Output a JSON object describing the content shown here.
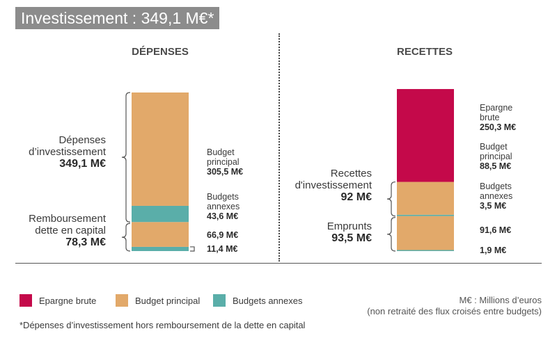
{
  "title": "Investissement : 349,1 M€*",
  "colors": {
    "epargne": "#c4094a",
    "principal": "#e2a96a",
    "annexes": "#5aaea9",
    "bracket": "#555555"
  },
  "chart_data": [
    {
      "type": "bar",
      "title": "DÉPENSES",
      "unit": "M€",
      "stack": [
        {
          "name": "Budget principal",
          "label_line1": "Budget",
          "label_line2": "principal",
          "value": 305.5,
          "value_label": "305,5 M€",
          "color_key": "principal"
        },
        {
          "name": "Budgets annexes",
          "label_line1": "Budgets",
          "label_line2": "annexes",
          "value": 43.6,
          "value_label": "43,6 M€",
          "color_key": "annexes"
        },
        {
          "name": "Budget principal",
          "value": 66.9,
          "value_label": "66,9 M€",
          "color_key": "principal"
        },
        {
          "name": "Budgets annexes",
          "value": 11.4,
          "value_label": "11,4 M€",
          "color_key": "annexes"
        }
      ],
      "groups": [
        {
          "line1": "Dépenses",
          "line2": "d’investissement",
          "value_label": "349,1 M€",
          "value": 349.1
        },
        {
          "line1": "Remboursement",
          "line2": "dette en capital",
          "value_label": "78,3 M€",
          "value": 78.3
        }
      ]
    },
    {
      "type": "bar",
      "title": "RECETTES",
      "unit": "M€",
      "stack": [
        {
          "name": "Epargne brute",
          "label_line1": "Epargne",
          "label_line2": "brute",
          "value": 250.3,
          "value_label": "250,3 M€",
          "color_key": "epargne"
        },
        {
          "name": "Budget principal",
          "label_line1": "Budget",
          "label_line2": "principal",
          "value": 88.5,
          "value_label": "88,5 M€",
          "color_key": "principal"
        },
        {
          "name": "Budgets annexes",
          "label_line1": "Budgets",
          "label_line2": "annexes",
          "value": 3.5,
          "value_label": "3,5 M€",
          "color_key": "annexes"
        },
        {
          "name": "Budget principal",
          "value": 91.6,
          "value_label": "91,6 M€",
          "color_key": "principal"
        },
        {
          "name": "Budgets annexes",
          "value": 1.9,
          "value_label": "1,9 M€",
          "color_key": "annexes"
        }
      ],
      "groups": [
        {
          "line1": "Recettes",
          "line2": "d'investissement",
          "value_label": "92 M€",
          "value": 92
        },
        {
          "line1": "Emprunts",
          "line2": "",
          "value_label": "93,5 M€",
          "value": 93.5
        }
      ]
    }
  ],
  "legend": [
    {
      "label": "Epargne brute",
      "color_key": "epargne"
    },
    {
      "label": "Budget principal",
      "color_key": "principal"
    },
    {
      "label": "Budgets annexes",
      "color_key": "annexes"
    }
  ],
  "units_note": {
    "line1": "M€ : Millions d’euros",
    "line2": "(non retraité des flux croisés entre budgets)"
  },
  "footnote": "*Dépenses d’investissement hors remboursement de la dette en capital"
}
